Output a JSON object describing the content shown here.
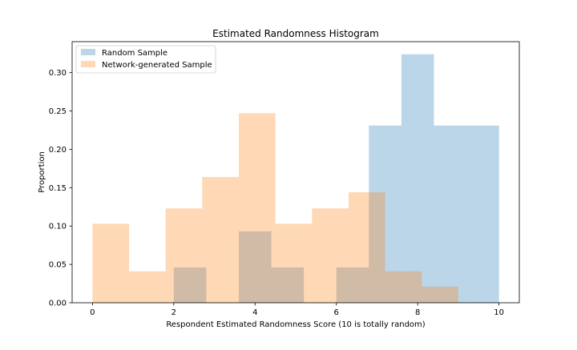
{
  "chart_data": {
    "type": "histogram",
    "title": "Estimated Randomness Histogram",
    "xlabel": "Respondent Estimated Randomness Score (10 is totally random)",
    "ylabel": "Proportion",
    "xlim": [
      -0.5,
      10.5
    ],
    "ylim": [
      0.0,
      0.3404
    ],
    "xticks": [
      0,
      2,
      4,
      6,
      8,
      10
    ],
    "yticks": [
      0.0,
      0.05,
      0.1,
      0.15,
      0.2,
      0.25,
      0.3
    ],
    "xtick_labels": [
      "0",
      "2",
      "4",
      "6",
      "8",
      "10"
    ],
    "ytick_labels": [
      "0.00",
      "0.05",
      "0.10",
      "0.15",
      "0.20",
      "0.25",
      "0.30"
    ],
    "legend_position": "upper-left",
    "grid": false,
    "series": [
      {
        "name": "Random Sample",
        "color": "#1f77b4",
        "alpha": 0.3,
        "bins": [
          {
            "x0": 2.0,
            "x1": 2.8,
            "value": 0.046
          },
          {
            "x0": 2.8,
            "x1": 3.6,
            "value": 0.0
          },
          {
            "x0": 3.6,
            "x1": 4.4,
            "value": 0.093
          },
          {
            "x0": 4.4,
            "x1": 5.2,
            "value": 0.046
          },
          {
            "x0": 5.2,
            "x1": 6.0,
            "value": 0.0
          },
          {
            "x0": 6.0,
            "x1": 6.8,
            "value": 0.046
          },
          {
            "x0": 6.8,
            "x1": 7.6,
            "value": 0.231
          },
          {
            "x0": 7.6,
            "x1": 8.4,
            "value": 0.324
          },
          {
            "x0": 8.4,
            "x1": 9.2,
            "value": 0.231
          },
          {
            "x0": 9.2,
            "x1": 10.0,
            "value": 0.231
          }
        ]
      },
      {
        "name": "Network-generated Sample",
        "color": "#ff7f0e",
        "alpha": 0.3,
        "bins": [
          {
            "x0": 0.0,
            "x1": 0.9,
            "value": 0.103
          },
          {
            "x0": 0.9,
            "x1": 1.8,
            "value": 0.041
          },
          {
            "x0": 1.8,
            "x1": 2.7,
            "value": 0.123
          },
          {
            "x0": 2.7,
            "x1": 3.6,
            "value": 0.164
          },
          {
            "x0": 3.6,
            "x1": 4.5,
            "value": 0.247
          },
          {
            "x0": 4.5,
            "x1": 5.4,
            "value": 0.103
          },
          {
            "x0": 5.4,
            "x1": 6.3,
            "value": 0.123
          },
          {
            "x0": 6.3,
            "x1": 7.2,
            "value": 0.144
          },
          {
            "x0": 7.2,
            "x1": 8.1,
            "value": 0.041
          },
          {
            "x0": 8.1,
            "x1": 9.0,
            "value": 0.021
          }
        ]
      }
    ]
  }
}
